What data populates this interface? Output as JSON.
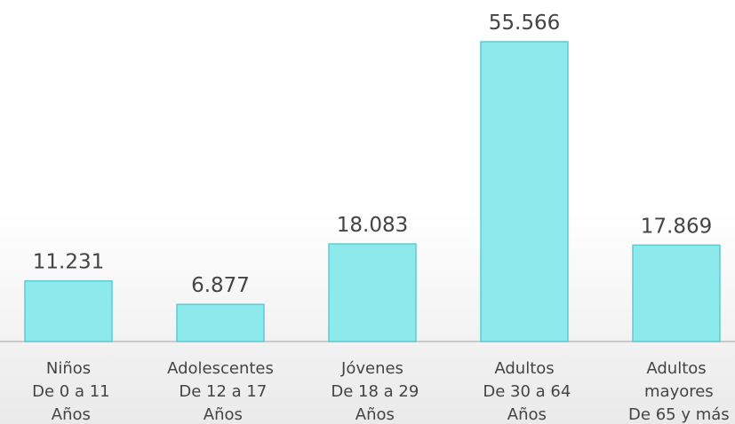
{
  "chart_data": {
    "type": "bar",
    "categories": [
      "Niños\nDe 0 a 11\nAños",
      "Adolescentes\nDe 12 a 17\nAños",
      "Jóvenes\nDe 18 a 29\nAños",
      "Adultos\nDe 30 a 64\nAños",
      "Adultos\nmayores\nDe 65 y más"
    ],
    "values": [
      11231,
      6877,
      18083,
      55566,
      17869
    ],
    "value_labels": [
      "11.231",
      "6.877",
      "18.083",
      "55.566",
      "17.869"
    ],
    "color": "#8ce9ec"
  }
}
